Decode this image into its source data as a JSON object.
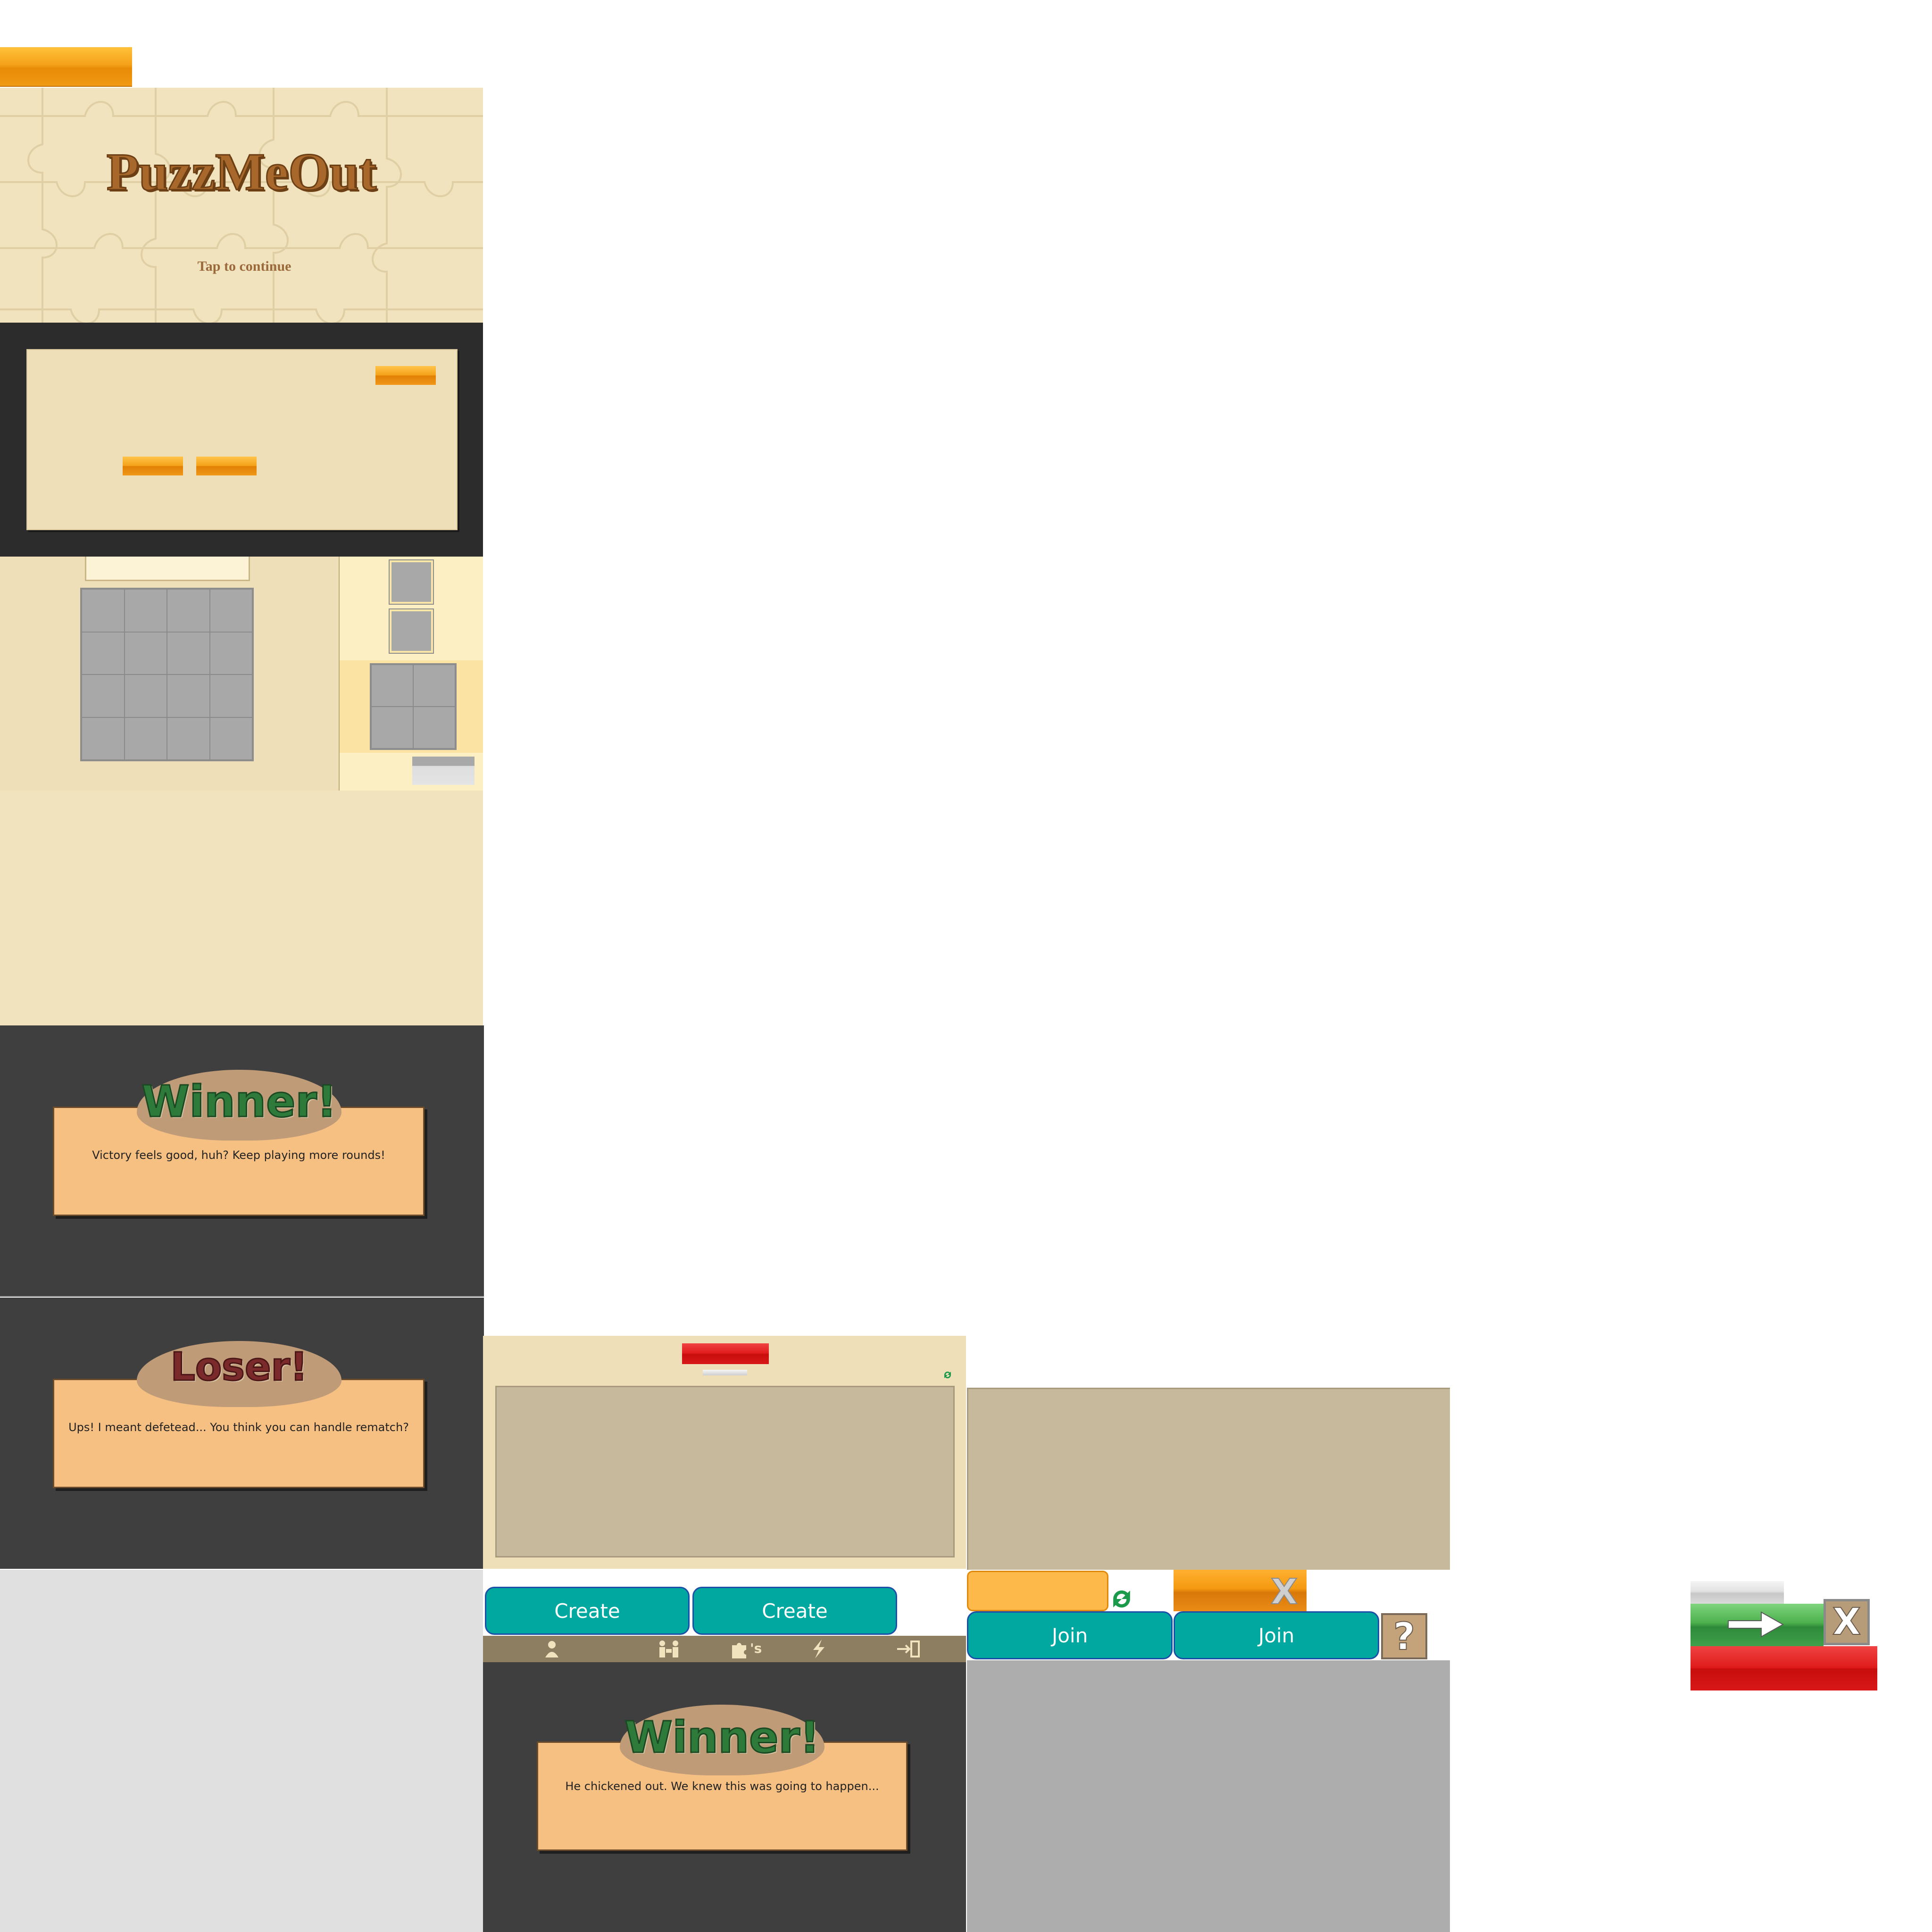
{
  "splash": {
    "title": "PuzzMeOut",
    "subtitle": "Tap to continue"
  },
  "result_winner": {
    "heading": "Winner!",
    "message": "Victory feels good, huh? Keep playing more rounds!"
  },
  "result_loser": {
    "heading": "Loser!",
    "message": "Ups! I meant defetead... You think you can handle rematch?"
  },
  "result_forfeit": {
    "heading": "Winner!",
    "message": "He chickened out. We knew this was going to happen..."
  },
  "lobby": {
    "create_label_1": "Create",
    "create_label_2": "Create",
    "join_label_1": "Join",
    "join_label_2": "Join",
    "tab_icons": [
      "player-icon",
      "versus-icon",
      "puzzles-icon",
      "quick-icon",
      "logout-icon"
    ],
    "puzzles_suffix": "'s"
  },
  "controls": {
    "help_label": "?",
    "close_label": "X"
  },
  "colors": {
    "beige": "#efdfb8",
    "orange": "#f5a21a",
    "teal": "#00a8a0",
    "dark": "#3f3f3f",
    "winner_green": "#2e7a3a",
    "loser_red": "#7a2a2a"
  }
}
